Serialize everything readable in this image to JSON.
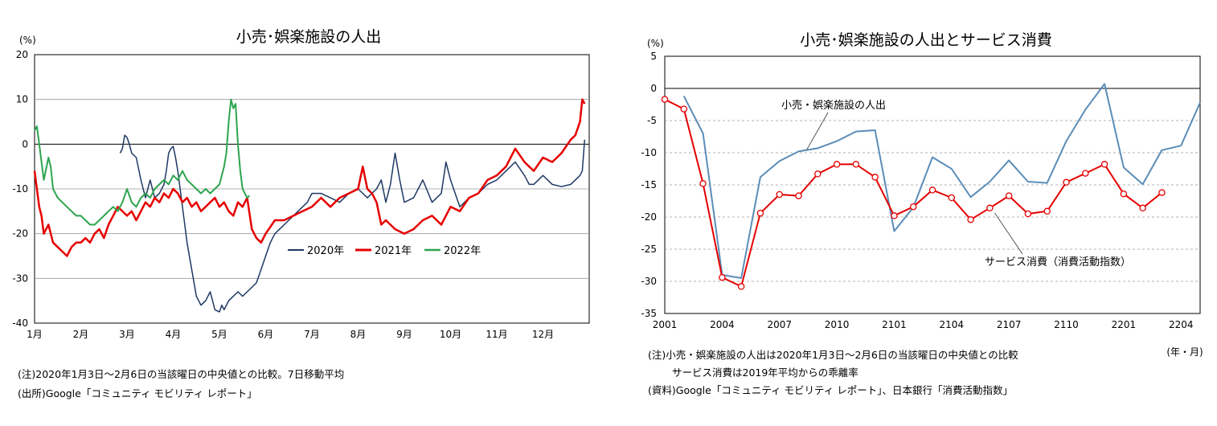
{
  "left_notes": {
    "note": "(注)2020年1月3日～2月6日の当該曜日の中央値との比較。7日移動平均",
    "source": "(出所)Google「コミュニティ モビリティ レポート」"
  },
  "right_notes": {
    "note1": "(注)小売・娯楽施設の人出は2020年1月3日～2月6日の当該曜日の中央値との比較",
    "note2": "サービス消費は2019年平均からの乖離率",
    "source": "(資料)Google「コミュニティ モビリティ レポート」、日本銀行「消費活動指数」"
  },
  "chart_data": [
    {
      "type": "line",
      "title": "小売･娯楽施設の人出",
      "ylabel": "(%)",
      "ylim": [
        -40,
        20
      ],
      "yticks": [
        20,
        10,
        0,
        -10,
        -20,
        -30,
        -40
      ],
      "xlim": [
        1,
        13
      ],
      "xticks": [
        {
          "label": "1月",
          "x": 1
        },
        {
          "label": "2月",
          "x": 2
        },
        {
          "label": "3月",
          "x": 3
        },
        {
          "label": "4月",
          "x": 4
        },
        {
          "label": "5月",
          "x": 5
        },
        {
          "label": "6月",
          "x": 6
        },
        {
          "label": "7月",
          "x": 7
        },
        {
          "label": "8月",
          "x": 8
        },
        {
          "label": "9月",
          "x": 9
        },
        {
          "label": "10月",
          "x": 10
        },
        {
          "label": "11月",
          "x": 11
        },
        {
          "label": "12月",
          "x": 12
        }
      ],
      "legend_position": "bottom-center",
      "series": [
        {
          "name": "2020年",
          "color": "#1f3864",
          "width": 1.5,
          "x": [
            2.85,
            2.9,
            2.95,
            3.0,
            3.05,
            3.1,
            3.2,
            3.3,
            3.4,
            3.45,
            3.5,
            3.6,
            3.7,
            3.8,
            3.85,
            3.9,
            3.95,
            4.0,
            4.05,
            4.1,
            4.2,
            4.3,
            4.4,
            4.5,
            4.6,
            4.7,
            4.8,
            4.9,
            5.0,
            5.05,
            5.1,
            5.2,
            5.3,
            5.4,
            5.5,
            5.6,
            5.7,
            5.8,
            5.9,
            6.0,
            6.1,
            6.2,
            6.3,
            6.5,
            6.7,
            6.9,
            7.0,
            7.2,
            7.4,
            7.6,
            7.8,
            8.0,
            8.2,
            8.4,
            8.5,
            8.6,
            8.7,
            8.8,
            8.9,
            9.0,
            9.2,
            9.4,
            9.6,
            9.8,
            9.9,
            10.0,
            10.2,
            10.4,
            10.6,
            10.8,
            11.0,
            11.2,
            11.4,
            11.6,
            11.7,
            11.8,
            12.0,
            12.2,
            12.4,
            12.6,
            12.7,
            12.8,
            12.85,
            12.9
          ],
          "y": [
            -2,
            -1,
            2,
            1.5,
            0,
            -2,
            -3,
            -8,
            -12,
            -10,
            -8,
            -12,
            -11,
            -9,
            -6,
            -2,
            -1,
            -0.5,
            -3,
            -6,
            -14,
            -22,
            -28,
            -34,
            -36,
            -35,
            -33,
            -37,
            -37.5,
            -36,
            -37,
            -35,
            -34,
            -33,
            -34,
            -33,
            -32,
            -31,
            -28,
            -25,
            -22,
            -20,
            -19,
            -17,
            -15,
            -13,
            -11,
            -11,
            -12,
            -13,
            -11,
            -10,
            -12,
            -10,
            -8,
            -13,
            -9,
            -2,
            -8,
            -13,
            -12,
            -8,
            -13,
            -11,
            -4,
            -8,
            -14,
            -12,
            -11,
            -9,
            -8,
            -6,
            -4,
            -7,
            -9,
            -9,
            -7,
            -9,
            -9.5,
            -9,
            -8,
            -7,
            -6,
            1
          ]
        },
        {
          "name": "2021年",
          "color": "#e60000",
          "width": 2.5,
          "x": [
            1.0,
            1.05,
            1.1,
            1.15,
            1.2,
            1.3,
            1.4,
            1.5,
            1.6,
            1.7,
            1.8,
            1.9,
            2.0,
            2.1,
            2.2,
            2.3,
            2.4,
            2.5,
            2.6,
            2.7,
            2.8,
            2.9,
            3.0,
            3.1,
            3.2,
            3.3,
            3.4,
            3.5,
            3.6,
            3.7,
            3.8,
            3.9,
            4.0,
            4.1,
            4.2,
            4.3,
            4.4,
            4.5,
            4.6,
            4.7,
            4.8,
            4.9,
            5.0,
            5.1,
            5.2,
            5.3,
            5.4,
            5.5,
            5.6,
            5.7,
            5.8,
            5.9,
            6.0,
            6.2,
            6.4,
            6.6,
            6.8,
            7.0,
            7.2,
            7.4,
            7.6,
            7.8,
            8.0,
            8.1,
            8.2,
            8.3,
            8.4,
            8.5,
            8.6,
            8.8,
            9.0,
            9.2,
            9.4,
            9.6,
            9.8,
            10.0,
            10.2,
            10.4,
            10.6,
            10.8,
            11.0,
            11.2,
            11.4,
            11.6,
            11.8,
            12.0,
            12.2,
            12.4,
            12.6,
            12.7,
            12.8,
            12.85,
            12.9
          ],
          "y": [
            -6,
            -10,
            -14,
            -16,
            -20,
            -18,
            -22,
            -23,
            -24,
            -25,
            -23,
            -22,
            -22,
            -21,
            -22,
            -20,
            -19,
            -21,
            -18,
            -16,
            -14,
            -15,
            -16,
            -15,
            -17,
            -15,
            -13,
            -14,
            -12,
            -13,
            -11,
            -12,
            -10,
            -11,
            -13,
            -12,
            -14,
            -13,
            -15,
            -14,
            -13,
            -12,
            -14,
            -13,
            -15,
            -16,
            -13,
            -14,
            -12,
            -19,
            -21,
            -22,
            -20,
            -17,
            -17,
            -16,
            -15,
            -14,
            -12,
            -14,
            -12,
            -11,
            -10,
            -5,
            -10,
            -11,
            -13,
            -18,
            -17,
            -19,
            -20,
            -19,
            -17,
            -16,
            -18,
            -14,
            -15,
            -12,
            -11,
            -8,
            -7,
            -5,
            -1,
            -4,
            -6,
            -3,
            -4,
            -2,
            1,
            2,
            5,
            10,
            9
          ]
        },
        {
          "name": "2022年",
          "color": "#2ea44f",
          "width": 2,
          "x": [
            1.0,
            1.05,
            1.1,
            1.2,
            1.3,
            1.35,
            1.4,
            1.5,
            1.6,
            1.7,
            1.8,
            1.9,
            2.0,
            2.1,
            2.2,
            2.3,
            2.4,
            2.5,
            2.6,
            2.7,
            2.8,
            2.9,
            3.0,
            3.1,
            3.2,
            3.3,
            3.4,
            3.5,
            3.6,
            3.7,
            3.8,
            3.9,
            4.0,
            4.1,
            4.2,
            4.3,
            4.4,
            4.5,
            4.6,
            4.7,
            4.8,
            4.9,
            5.0,
            5.05,
            5.1,
            5.15,
            5.2,
            5.25,
            5.3,
            5.35,
            5.4,
            5.45,
            5.5,
            5.55,
            5.6,
            5.65
          ],
          "y": [
            3,
            4,
            0,
            -8,
            -3,
            -5,
            -10,
            -12,
            -13,
            -14,
            -15,
            -16,
            -16,
            -17,
            -18,
            -18,
            -17,
            -16,
            -15,
            -14,
            -15,
            -13,
            -10,
            -13,
            -14,
            -12,
            -11,
            -12,
            -10,
            -9,
            -8,
            -9,
            -7,
            -8,
            -6,
            -8,
            -9,
            -10,
            -11,
            -10,
            -11,
            -10,
            -9,
            -7,
            -5,
            -2,
            5,
            10,
            8,
            9,
            0,
            -6,
            -10,
            -11,
            -12,
            -11.5
          ]
        }
      ]
    },
    {
      "type": "line",
      "title": "小売･娯楽施設の人出とサービス消費",
      "ylabel": "(%)",
      "xlabel": "(年・月)",
      "ylim": [
        -35,
        5
      ],
      "yticks": [
        5,
        0,
        -5,
        -10,
        -15,
        -20,
        -25,
        -30,
        -35
      ],
      "xlim": [
        0,
        28
      ],
      "xticks": [
        {
          "label": "2001",
          "x": 0
        },
        {
          "label": "2004",
          "x": 3
        },
        {
          "label": "2007",
          "x": 6
        },
        {
          "label": "2010",
          "x": 9
        },
        {
          "label": "2101",
          "x": 12
        },
        {
          "label": "2104",
          "x": 15
        },
        {
          "label": "2107",
          "x": 18
        },
        {
          "label": "2110",
          "x": 21
        },
        {
          "label": "2201",
          "x": 24
        },
        {
          "label": "2204",
          "x": 27
        }
      ],
      "grid": "dashed-horizontal",
      "annotations": [
        {
          "text": "小売・娯楽施設の人出",
          "series": 0
        },
        {
          "text": "サービス消費（消費活動指数）",
          "series": 1
        }
      ],
      "series": [
        {
          "color": "#5b8db8",
          "marker": "none",
          "x": [
            1,
            2,
            3,
            4,
            5,
            6,
            7,
            8,
            9,
            10,
            11,
            12,
            13,
            14,
            15,
            16,
            17,
            18,
            19,
            20,
            21,
            22,
            23,
            24,
            25,
            26,
            27,
            28
          ],
          "y": [
            -1.2,
            -7,
            -29,
            -29.5,
            -13.8,
            -11.3,
            -9.8,
            -9.3,
            -8.2,
            -6.7,
            -6.5,
            -22.2,
            -18.5,
            -10.7,
            -12.5,
            -16.9,
            -14.5,
            -11.2,
            -14.5,
            -14.7,
            -8.2,
            -3.3,
            0.7,
            -12.3,
            -14.9,
            -9.6,
            -8.9,
            -2.2
          ]
        },
        {
          "color": "#e60000",
          "marker": "circle",
          "x": [
            0,
            1,
            2,
            3,
            4,
            5,
            6,
            7,
            8,
            9,
            10,
            11,
            12,
            13,
            14,
            15,
            16,
            17,
            18,
            19,
            20,
            21,
            22,
            23,
            24,
            25,
            26
          ],
          "y": [
            -1.7,
            -3.2,
            -14.8,
            -29.4,
            -30.8,
            -19.4,
            -16.5,
            -16.7,
            -13.3,
            -11.8,
            -11.8,
            -13.8,
            -19.8,
            -18.4,
            -15.8,
            -17,
            -20.4,
            -18.6,
            -16.7,
            -19.5,
            -19.1,
            -14.6,
            -13.2,
            -11.8,
            -16.4,
            -18.6,
            -16.2
          ]
        }
      ]
    }
  ]
}
